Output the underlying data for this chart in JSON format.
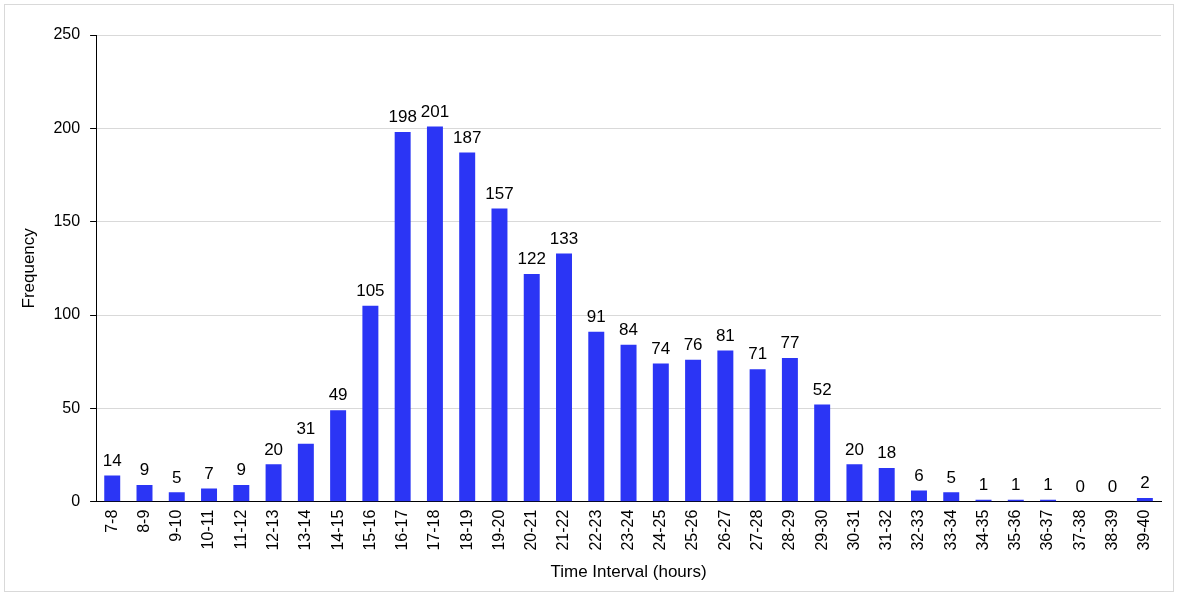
{
  "chart_data": {
    "type": "bar",
    "xlabel": "Time Interval (hours)",
    "ylabel": "Frequency",
    "categories": [
      "7-8",
      "8-9",
      "9-10",
      "10-11",
      "11-12",
      "12-13",
      "13-14",
      "14-15",
      "15-16",
      "16-17",
      "17-18",
      "18-19",
      "19-20",
      "20-21",
      "21-22",
      "22-23",
      "23-24",
      "24-25",
      "25-26",
      "26-27",
      "27-28",
      "28-29",
      "29-30",
      "30-31",
      "31-32",
      "32-33",
      "33-34",
      "34-35",
      "35-36",
      "36-37",
      "37-38",
      "38-39",
      "39-40"
    ],
    "values": [
      14,
      9,
      5,
      7,
      9,
      20,
      31,
      49,
      105,
      198,
      201,
      187,
      157,
      122,
      133,
      91,
      84,
      74,
      76,
      81,
      71,
      77,
      52,
      20,
      18,
      6,
      5,
      1,
      1,
      1,
      0,
      0,
      2
    ],
    "color": "#2b35f5",
    "ylim": [
      0,
      250
    ],
    "yticks": [
      0,
      50,
      100,
      150,
      200,
      250
    ],
    "grid": "y",
    "legend": false,
    "data_labels": true
  }
}
